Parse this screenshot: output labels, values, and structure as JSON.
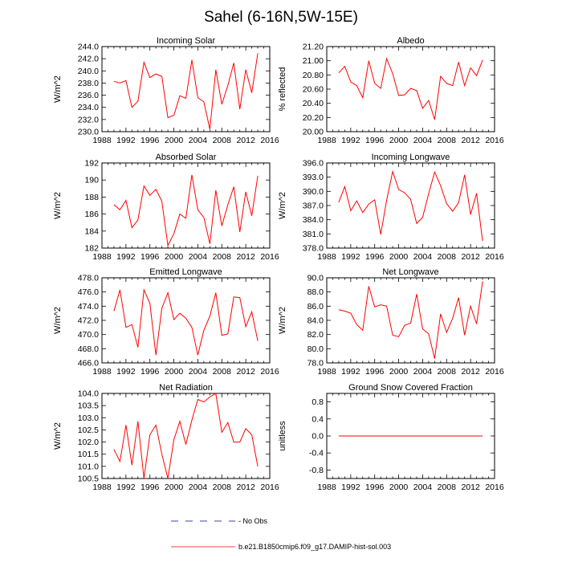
{
  "figure": {
    "title": "Sahel (6-16N,5W-15E)",
    "legend": [
      {
        "label": "No Obs",
        "color": "#00008b",
        "dash": "dashed"
      },
      {
        "label": "b.e21.B1850cmip6.f09_g17.DAMIP-hist-sol.003",
        "color": "#ff0000",
        "dash": "solid"
      }
    ]
  },
  "chart_data": [
    {
      "type": "line",
      "title": "Incoming Solar",
      "ylabel": "W/m^2",
      "xlim": [
        1988,
        2016
      ],
      "xticks": [
        1988,
        1992,
        1996,
        2000,
        2004,
        2008,
        2012,
        2016
      ],
      "ylim": [
        230,
        244
      ],
      "yticks": [
        "230.0",
        "232.0",
        "234.0",
        "236.0",
        "238.0",
        "240.0",
        "242.0",
        "244.0"
      ],
      "series": [
        {
          "color": "#ff0000",
          "x": [
            1990,
            1991,
            1992,
            1993,
            1994,
            1995,
            1996,
            1997,
            1998,
            1999,
            2000,
            2001,
            2002,
            2003,
            2004,
            2005,
            2006,
            2007,
            2008,
            2009,
            2010,
            2011,
            2012,
            2013,
            2014
          ],
          "y": [
            238.3,
            238.0,
            238.4,
            234.0,
            235.0,
            241.4,
            238.9,
            239.5,
            239.1,
            232.3,
            232.7,
            235.9,
            235.5,
            241.8,
            235.6,
            234.9,
            230.4,
            240.2,
            234.5,
            237.6,
            241.3,
            233.7,
            240.2,
            236.4,
            242.9
          ]
        }
      ]
    },
    {
      "type": "line",
      "title": "Albedo",
      "ylabel": "% reflected",
      "xlim": [
        1988,
        2016
      ],
      "xticks": [
        1988,
        1992,
        1996,
        2000,
        2004,
        2008,
        2012,
        2016
      ],
      "ylim": [
        20.0,
        21.2
      ],
      "yticks": [
        "20.00",
        "20.20",
        "20.40",
        "20.60",
        "20.80",
        "21.00",
        "21.20"
      ],
      "series": [
        {
          "color": "#ff0000",
          "x": [
            1990,
            1991,
            1992,
            1993,
            1994,
            1995,
            1996,
            1997,
            1998,
            1999,
            2000,
            2001,
            2002,
            2003,
            2004,
            2005,
            2006,
            2007,
            2008,
            2009,
            2010,
            2011,
            2012,
            2013,
            2014
          ],
          "y": [
            20.83,
            20.92,
            20.7,
            20.65,
            20.48,
            21.0,
            20.68,
            20.61,
            21.03,
            20.82,
            20.51,
            20.52,
            20.61,
            20.58,
            20.33,
            20.44,
            20.17,
            20.78,
            20.68,
            20.65,
            20.98,
            20.65,
            20.9,
            20.79,
            21.01
          ]
        }
      ]
    },
    {
      "type": "line",
      "title": "Absorbed Solar",
      "ylabel": "W/m^2",
      "xlim": [
        1988,
        2016
      ],
      "xticks": [
        1988,
        1992,
        1996,
        2000,
        2004,
        2008,
        2012,
        2016
      ],
      "ylim": [
        182,
        192
      ],
      "yticks": [
        "182",
        "184",
        "186",
        "188",
        "190",
        "192"
      ],
      "series": [
        {
          "color": "#ff0000",
          "x": [
            1990,
            1991,
            1992,
            1993,
            1994,
            1995,
            1996,
            1997,
            1998,
            1999,
            2000,
            2001,
            2002,
            2003,
            2004,
            2005,
            2006,
            2007,
            2008,
            2009,
            2010,
            2011,
            2012,
            2013,
            2014
          ],
          "y": [
            187.1,
            186.5,
            187.6,
            184.4,
            185.3,
            189.3,
            188.2,
            188.9,
            187.5,
            182.3,
            183.7,
            186.0,
            185.5,
            190.6,
            186.5,
            185.6,
            182.5,
            188.8,
            184.6,
            187.1,
            189.2,
            183.9,
            188.6,
            185.8,
            190.5
          ]
        }
      ]
    },
    {
      "type": "line",
      "title": "Incoming Longwave",
      "ylabel": "W/m^2",
      "xlim": [
        1988,
        2016
      ],
      "xticks": [
        1988,
        1992,
        1996,
        2000,
        2004,
        2008,
        2012,
        2016
      ],
      "ylim": [
        378.0,
        396.0
      ],
      "yticks": [
        "378.0",
        "381.0",
        "384.0",
        "387.0",
        "390.0",
        "393.0",
        "396.0"
      ],
      "series": [
        {
          "color": "#ff0000",
          "x": [
            1990,
            1991,
            1992,
            1993,
            1994,
            1995,
            1996,
            1997,
            1998,
            1999,
            2000,
            2001,
            2002,
            2003,
            2004,
            2005,
            2006,
            2007,
            2008,
            2009,
            2010,
            2011,
            2012,
            2013,
            2014
          ],
          "y": [
            387.7,
            391.0,
            385.9,
            388.0,
            385.5,
            387.3,
            388.2,
            380.9,
            388.1,
            394.2,
            390.4,
            389.7,
            388.3,
            383.2,
            384.5,
            389.5,
            394.1,
            391.2,
            387.4,
            385.8,
            387.6,
            393.5,
            385.1,
            389.6,
            379.5
          ]
        }
      ]
    },
    {
      "type": "line",
      "title": "Emitted Longwave",
      "ylabel": "W/m^2",
      "xlim": [
        1988,
        2016
      ],
      "xticks": [
        1988,
        1992,
        1996,
        2000,
        2004,
        2008,
        2012,
        2016
      ],
      "ylim": [
        466.0,
        478.0
      ],
      "yticks": [
        "466.0",
        "468.0",
        "470.0",
        "472.0",
        "474.0",
        "476.0",
        "478.0"
      ],
      "series": [
        {
          "color": "#ff0000",
          "x": [
            1990,
            1991,
            1992,
            1993,
            1994,
            1995,
            1996,
            1997,
            1998,
            1999,
            2000,
            2001,
            2002,
            2003,
            2004,
            2005,
            2006,
            2007,
            2008,
            2009,
            2010,
            2011,
            2012,
            2013,
            2014
          ],
          "y": [
            473.3,
            476.3,
            471.0,
            471.4,
            468.2,
            476.3,
            474.4,
            467.1,
            473.7,
            475.9,
            472.1,
            473.0,
            472.3,
            471.0,
            467.1,
            470.6,
            472.6,
            475.9,
            469.9,
            470.1,
            475.3,
            475.2,
            471.1,
            473.2,
            469.1
          ]
        }
      ]
    },
    {
      "type": "line",
      "title": "Net Longwave",
      "ylabel": "W/m^2",
      "xlim": [
        1988,
        2016
      ],
      "xticks": [
        1988,
        1992,
        1996,
        2000,
        2004,
        2008,
        2012,
        2016
      ],
      "ylim": [
        78.0,
        90.0
      ],
      "yticks": [
        "78.0",
        "80.0",
        "82.0",
        "84.0",
        "86.0",
        "88.0",
        "90.0"
      ],
      "series": [
        {
          "color": "#ff0000",
          "x": [
            1990,
            1991,
            1992,
            1993,
            1994,
            1995,
            1996,
            1997,
            1998,
            1999,
            2000,
            2001,
            2002,
            2003,
            2004,
            2005,
            2006,
            2007,
            2008,
            2009,
            2010,
            2011,
            2012,
            2013,
            2014
          ],
          "y": [
            85.5,
            85.3,
            85.0,
            83.4,
            82.6,
            88.8,
            85.9,
            86.2,
            86.0,
            81.9,
            81.7,
            83.3,
            83.6,
            87.7,
            82.8,
            82.1,
            78.6,
            84.9,
            82.3,
            84.3,
            87.2,
            81.9,
            86.0,
            83.5,
            89.5
          ]
        }
      ]
    },
    {
      "type": "line",
      "title": "Net Radiation",
      "ylabel": "W/m^2",
      "xlim": [
        1988,
        2016
      ],
      "xticks": [
        1988,
        1992,
        1996,
        2000,
        2004,
        2008,
        2012,
        2016
      ],
      "ylim": [
        100.5,
        104.0
      ],
      "yticks": [
        "100.5",
        "101.0",
        "101.5",
        "102.0",
        "102.5",
        "103.0",
        "103.5",
        "104.0"
      ],
      "series": [
        {
          "color": "#ff0000",
          "x": [
            1990,
            1991,
            1992,
            1993,
            1994,
            1995,
            1996,
            1997,
            1998,
            1999,
            2000,
            2001,
            2002,
            2003,
            2004,
            2005,
            2006,
            2007,
            2008,
            2009,
            2010,
            2011,
            2012,
            2013,
            2014
          ],
          "y": [
            101.7,
            101.2,
            102.7,
            101.05,
            102.85,
            100.5,
            102.3,
            102.7,
            101.5,
            100.5,
            102.1,
            102.85,
            101.9,
            102.9,
            103.75,
            103.65,
            103.85,
            104.0,
            102.4,
            102.8,
            102.0,
            102.0,
            102.55,
            102.3,
            101.0
          ]
        }
      ]
    },
    {
      "type": "line",
      "title": "Ground Snow Covered Fraction",
      "ylabel": "unitless",
      "xlim": [
        1988,
        2016
      ],
      "xticks": [
        1988,
        1992,
        1996,
        2000,
        2004,
        2008,
        2012,
        2016
      ],
      "ylim": [
        -1.0,
        1.0
      ],
      "yticks": [
        "-0.8",
        "-0.4",
        "0.0",
        "0.4",
        "0.8"
      ],
      "series": [
        {
          "color": "#ff0000",
          "x": [
            1990,
            1991,
            1992,
            1993,
            1994,
            1995,
            1996,
            1997,
            1998,
            1999,
            2000,
            2001,
            2002,
            2003,
            2004,
            2005,
            2006,
            2007,
            2008,
            2009,
            2010,
            2011,
            2012,
            2013,
            2014
          ],
          "y": [
            0,
            0,
            0,
            0,
            0,
            0,
            0,
            0,
            0,
            0,
            0,
            0,
            0,
            0,
            0,
            0,
            0,
            0,
            0,
            0,
            0,
            0,
            0,
            0,
            0
          ]
        }
      ]
    }
  ]
}
